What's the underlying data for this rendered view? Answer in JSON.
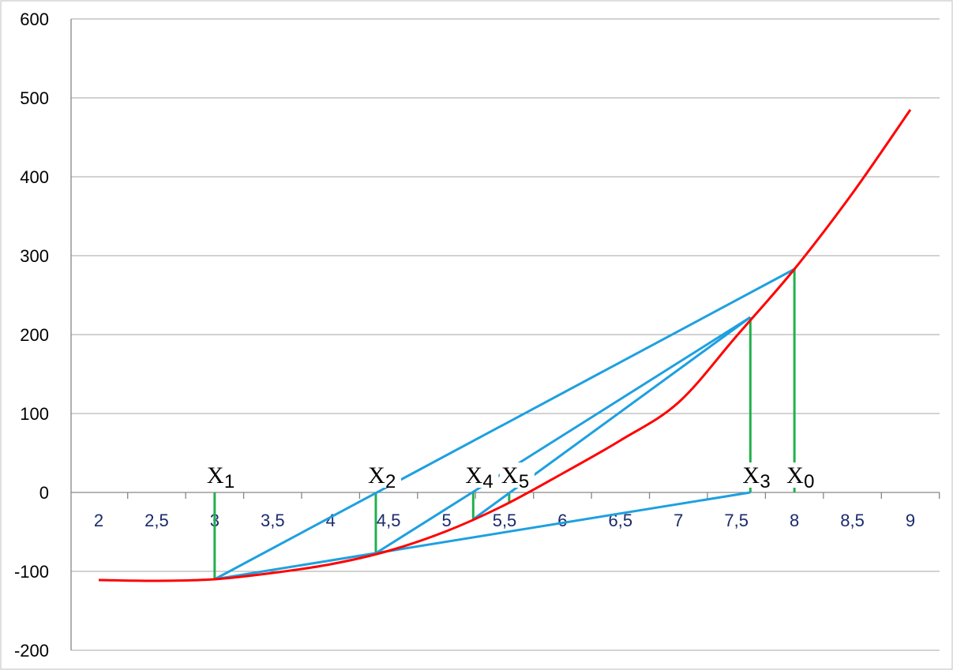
{
  "chart_data": {
    "type": "line",
    "title": "",
    "xlabel": "",
    "ylabel": "",
    "xlim": [
      2,
      9
    ],
    "ylim": [
      -200,
      600
    ],
    "grid": true,
    "yticks": [
      "600",
      "500",
      "400",
      "300",
      "200",
      "100",
      "0",
      "-100",
      "-200"
    ],
    "ytick_values": [
      600,
      500,
      400,
      300,
      200,
      100,
      0,
      -100,
      -200
    ],
    "xticks": [
      "2",
      "2,5",
      "3",
      "3,5",
      "4",
      "4,5",
      "5",
      "5,5",
      "6",
      "6,5",
      "7",
      "7,5",
      "8",
      "8,5",
      "9"
    ],
    "xtick_values": [
      2,
      2.5,
      3,
      3.5,
      4,
      4.5,
      5,
      5.5,
      6,
      6.5,
      7,
      7.5,
      8,
      8.5,
      9
    ],
    "curve": {
      "color": "#ff0000",
      "x": [
        2,
        2.5,
        3,
        3.5,
        4,
        4.5,
        5,
        5.5,
        6,
        6.5,
        7,
        7.5,
        8,
        8.5,
        9
      ],
      "y": [
        -111,
        -112,
        -110,
        -102,
        -91,
        -74,
        -49,
        -16,
        24,
        66,
        114,
        198,
        283,
        379,
        485
      ]
    },
    "iterates": [
      {
        "label": "X",
        "sub": "0",
        "x": 8.0,
        "y": 283
      },
      {
        "label": "X",
        "sub": "1",
        "x": 3.0,
        "y": -110
      },
      {
        "label": "X",
        "sub": "2",
        "x": 4.39,
        "y": -77
      },
      {
        "label": "X",
        "sub": "3",
        "x": 7.62,
        "y": 222
      },
      {
        "label": "X",
        "sub": "4",
        "x": 5.23,
        "y": -34
      },
      {
        "label": "X",
        "sub": "5",
        "x": 5.54,
        "y": -14
      }
    ],
    "secant_color": "#1ea0e0",
    "vertical_color": "#22b14c"
  }
}
